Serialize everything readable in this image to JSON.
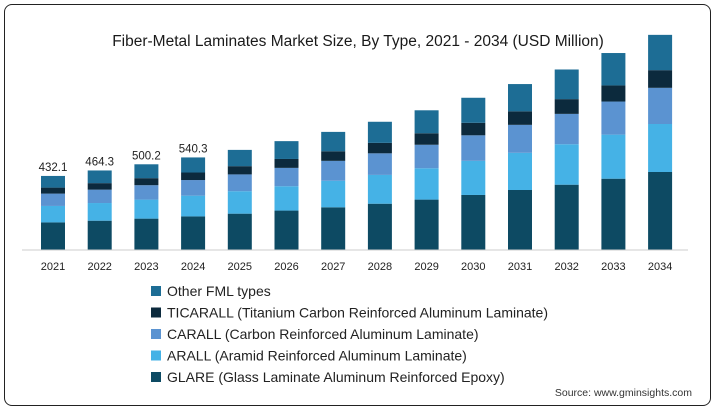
{
  "chart_data": {
    "type": "bar",
    "stacked": true,
    "title": "Fiber-Metal Laminates Market Size, By Type, 2021 - 2034 (USD Million)",
    "categories": [
      "2021",
      "2022",
      "2023",
      "2024",
      "2025",
      "2026",
      "2027",
      "2028",
      "2029",
      "2030",
      "2031",
      "2032",
      "2033",
      "2034"
    ],
    "totals": [
      432.1,
      464.3,
      500.2,
      540.3
    ],
    "total_labels": [
      "432.1",
      "464.3",
      "500.2",
      "540.3"
    ],
    "series": [
      {
        "name": "GLARE (Glass Laminate Aluminum Reinforced Epoxy)",
        "color": "#0d4a63",
        "values": [
          161,
          171,
          183,
          196,
          212,
          230,
          249,
          270,
          294,
          321,
          350,
          381,
          416,
          455
        ]
      },
      {
        "name": "ARALL (Aramid Reinforced Aluminum Laminate)",
        "color": "#45b2e6",
        "values": [
          96,
          103,
          111,
          121,
          131,
          142,
          155,
          168,
          183,
          199,
          217,
          236,
          257,
          280
        ]
      },
      {
        "name": "CARALL (Carbon Reinforced Aluminum Laminate)",
        "color": "#5b93d1",
        "values": [
          72,
          78,
          84,
          91,
          98,
          107,
          116,
          126,
          137,
          149,
          163,
          177,
          193,
          211
        ]
      },
      {
        "name": "TICARALL (Titanium Carbon Reinforced Aluminum Laminate)",
        "color": "#0c2a3d",
        "values": [
          35,
          38,
          41,
          44,
          48,
          52,
          56,
          61,
          67,
          73,
          79,
          86,
          94,
          103
        ]
      },
      {
        "name": "Other FML types",
        "color": "#1d6d95",
        "values": [
          68,
          74,
          81,
          88,
          95,
          104,
          113,
          123,
          134,
          146,
          159,
          173,
          189,
          206
        ]
      }
    ],
    "legend_order": [
      4,
      3,
      2,
      1,
      0
    ],
    "ylim": [
      0,
      1400
    ],
    "grid": false,
    "legend_position": "bottom-center"
  },
  "source": "Source: www.gminsights.com"
}
